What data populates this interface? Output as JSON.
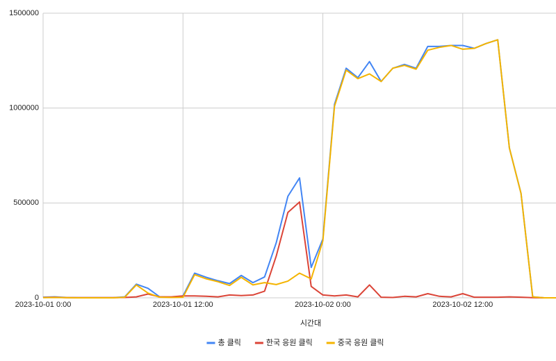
{
  "chart_data": {
    "type": "line",
    "x_label": "시간대",
    "x": [
      "2023-10-01 0:00",
      "2023-10-01 1:00",
      "2023-10-01 2:00",
      "2023-10-01 3:00",
      "2023-10-01 4:00",
      "2023-10-01 5:00",
      "2023-10-01 6:00",
      "2023-10-01 7:00",
      "2023-10-01 8:00",
      "2023-10-01 9:00",
      "2023-10-01 10:00",
      "2023-10-01 11:00",
      "2023-10-01 12:00",
      "2023-10-01 13:00",
      "2023-10-01 14:00",
      "2023-10-01 15:00",
      "2023-10-01 16:00",
      "2023-10-01 17:00",
      "2023-10-01 18:00",
      "2023-10-01 19:00",
      "2023-10-01 20:00",
      "2023-10-01 21:00",
      "2023-10-01 22:00",
      "2023-10-01 23:00",
      "2023-10-02 0:00",
      "2023-10-02 1:00",
      "2023-10-02 2:00",
      "2023-10-02 3:00",
      "2023-10-02 4:00",
      "2023-10-02 5:00",
      "2023-10-02 6:00",
      "2023-10-02 7:00",
      "2023-10-02 8:00",
      "2023-10-02 9:00",
      "2023-10-02 10:00",
      "2023-10-02 11:00",
      "2023-10-02 12:00",
      "2023-10-02 13:00",
      "2023-10-02 14:00",
      "2023-10-02 15:00",
      "2023-10-02 16:00",
      "2023-10-02 17:00",
      "2023-10-02 18:00",
      "2023-10-02 19:00",
      "2023-10-02 20:00"
    ],
    "series": [
      {
        "name": "총 클릭",
        "color": "#4285f4",
        "values": [
          3000,
          5000,
          2000,
          1000,
          1000,
          1000,
          1000,
          5000,
          72000,
          50000,
          5000,
          3000,
          10000,
          130000,
          108000,
          90000,
          75000,
          118000,
          80000,
          110000,
          290000,
          535000,
          632000,
          160000,
          310000,
          1020000,
          1210000,
          1160000,
          1245000,
          1140000,
          1210000,
          1230000,
          1210000,
          1325000,
          1325000,
          1330000,
          1330000,
          1315000,
          1340000,
          1360000,
          790000,
          550000,
          5000,
          0,
          0
        ]
      },
      {
        "name": "한국 응원 클릭",
        "color": "#db4437",
        "values": [
          2000,
          3000,
          1000,
          1000,
          1000,
          1000,
          1000,
          2000,
          5000,
          20000,
          5000,
          5000,
          10000,
          10000,
          8000,
          5000,
          15000,
          12000,
          15000,
          35000,
          220000,
          450000,
          505000,
          60000,
          15000,
          10000,
          15000,
          5000,
          68000,
          3000,
          2000,
          8000,
          5000,
          22000,
          8000,
          5000,
          22000,
          3000,
          3000,
          3000,
          5000,
          3000,
          1000,
          0,
          0
        ]
      },
      {
        "name": "중국 응원 클릭",
        "color": "#f4b400",
        "values": [
          1000,
          2000,
          1000,
          0,
          0,
          0,
          0,
          3000,
          68000,
          25000,
          3000,
          2000,
          3000,
          122000,
          100000,
          85000,
          65000,
          108000,
          68000,
          80000,
          70000,
          88000,
          130000,
          100000,
          300000,
          1010000,
          1200000,
          1155000,
          1180000,
          1140000,
          1210000,
          1225000,
          1205000,
          1305000,
          1320000,
          1330000,
          1310000,
          1315000,
          1340000,
          1360000,
          790000,
          550000,
          5000,
          0,
          0
        ]
      }
    ],
    "xlim": [
      "2023-10-01 0:00",
      "2023-10-02 20:00"
    ],
    "xticks": [
      "2023-10-01 0:00",
      "2023-10-01 12:00",
      "2023-10-02 0:00",
      "2023-10-02 12:00"
    ],
    "ylim": [
      0,
      1500000
    ],
    "yticks": [
      0,
      500000,
      1000000,
      1500000
    ],
    "grid": true,
    "legend": "bottom"
  }
}
